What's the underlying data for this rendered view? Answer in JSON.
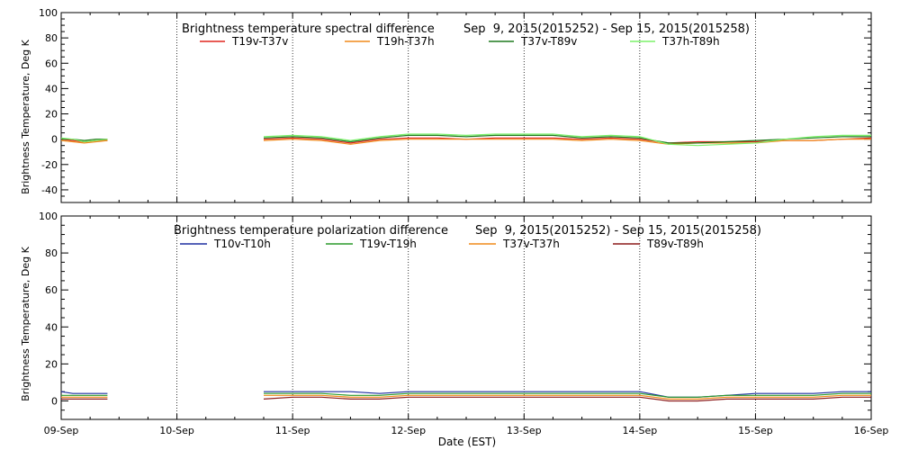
{
  "chart_data": [
    {
      "type": "line",
      "title_left": "Brightness temperature spectral difference",
      "title_right": "Sep  9, 2015(2015252) - Sep 15, 2015(2015258)",
      "ylabel": "Brightness Temperature, Deg K",
      "ylim": [
        -50,
        100
      ],
      "yticks": [
        "-40",
        "-20",
        "0",
        "20",
        "40",
        "60",
        "80",
        "100"
      ],
      "yticks_values": [
        -40,
        -20,
        0,
        20,
        40,
        60,
        80,
        100
      ],
      "xlim": [
        0,
        7
      ],
      "series": [
        {
          "name": "T19v-T37v",
          "color": "#e0261e",
          "x": [
            0,
            0.1,
            0.2,
            0.3,
            0.4,
            1.75,
            2.0,
            2.25,
            2.5,
            2.75,
            3.0,
            3.25,
            3.5,
            3.75,
            4.0,
            4.25,
            4.5,
            4.75,
            5.0,
            5.25,
            5.5,
            5.75,
            6.0,
            6.25,
            6.5,
            6.75,
            7.0
          ],
          "y": [
            0,
            -1,
            -2,
            -1,
            -1,
            0,
            1,
            0,
            -3,
            0,
            1,
            1,
            0,
            1,
            1,
            1,
            0,
            1,
            0,
            -3,
            -2,
            -2,
            -2,
            -1,
            -1,
            0,
            1
          ]
        },
        {
          "name": "T19h-T37h",
          "color": "#f08a1a",
          "x": [
            0,
            0.1,
            0.2,
            0.3,
            0.4,
            1.75,
            2.0,
            2.25,
            2.5,
            2.75,
            3.0,
            3.25,
            3.5,
            3.75,
            4.0,
            4.25,
            4.5,
            4.75,
            5.0,
            5.25,
            5.5,
            5.75,
            6.0,
            6.25,
            6.5,
            6.75,
            7.0
          ],
          "y": [
            -1,
            -2,
            -3,
            -2,
            -1,
            -1,
            0,
            -1,
            -4,
            -1,
            0,
            0,
            0,
            0,
            0,
            0,
            -1,
            0,
            -1,
            -4,
            -3,
            -3,
            -3,
            -1,
            -1,
            0,
            0
          ]
        },
        {
          "name": "T37v-T89v",
          "color": "#1f7a1f",
          "x": [
            0,
            0.1,
            0.2,
            0.3,
            0.4,
            1.75,
            2.0,
            2.25,
            2.5,
            2.75,
            3.0,
            3.25,
            3.5,
            3.75,
            4.0,
            4.25,
            4.5,
            4.75,
            5.0,
            5.25,
            5.5,
            5.75,
            6.0,
            6.25,
            6.5,
            6.75,
            7.0
          ],
          "y": [
            0,
            0,
            -1,
            0,
            0,
            1,
            2,
            1,
            -2,
            1,
            3,
            3,
            2,
            3,
            3,
            3,
            1,
            2,
            1,
            -3,
            -3,
            -2,
            -1,
            0,
            1,
            2,
            2
          ]
        },
        {
          "name": "T37h-T89h",
          "color": "#7cf26a",
          "x": [
            0,
            0.1,
            0.2,
            0.3,
            0.4,
            1.75,
            2.0,
            2.25,
            2.5,
            2.75,
            3.0,
            3.25,
            3.5,
            3.75,
            4.0,
            4.25,
            4.5,
            4.75,
            5.0,
            5.25,
            5.5,
            5.75,
            6.0,
            6.25,
            6.5,
            6.75,
            7.0
          ],
          "y": [
            1,
            0,
            -2,
            -1,
            0,
            2,
            3,
            2,
            -1,
            2,
            4,
            4,
            3,
            4,
            4,
            4,
            2,
            3,
            2,
            -4,
            -5,
            -4,
            -3,
            0,
            2,
            3,
            3
          ]
        }
      ]
    },
    {
      "type": "line",
      "title_left": "Brightness temperature polarization difference",
      "title_right": "Sep  9, 2015(2015252) - Sep 15, 2015(2015258)",
      "ylabel": "Brightness Temperature, Deg K",
      "xlabel": "Date (EST)",
      "ylim": [
        -10,
        100
      ],
      "yticks": [
        "0",
        "20",
        "40",
        "60",
        "80",
        "100"
      ],
      "yticks_values": [
        0,
        20,
        40,
        60,
        80,
        100
      ],
      "xlim": [
        0,
        7
      ],
      "xticks": [
        "09-Sep",
        "10-Sep",
        "11-Sep",
        "12-Sep",
        "13-Sep",
        "14-Sep",
        "15-Sep",
        "16-Sep"
      ],
      "xticks_values": [
        0,
        1,
        2,
        3,
        4,
        5,
        6,
        7
      ],
      "series": [
        {
          "name": "T10v-T10h",
          "color": "#1f2ea0",
          "x": [
            0,
            0.1,
            0.2,
            0.3,
            0.4,
            1.75,
            2.0,
            2.25,
            2.5,
            2.75,
            3.0,
            3.25,
            3.5,
            3.75,
            4.0,
            4.25,
            4.5,
            4.75,
            5.0,
            5.25,
            5.5,
            5.75,
            6.0,
            6.25,
            6.5,
            6.75,
            7.0
          ],
          "y": [
            5,
            4,
            4,
            4,
            4,
            5,
            5,
            5,
            5,
            4,
            5,
            5,
            5,
            5,
            5,
            5,
            5,
            5,
            5,
            2,
            2,
            3,
            4,
            4,
            4,
            5,
            5
          ]
        },
        {
          "name": "T19v-T19h",
          "color": "#2a9a2a",
          "x": [
            0,
            0.1,
            0.2,
            0.3,
            0.4,
            1.75,
            2.0,
            2.25,
            2.5,
            2.75,
            3.0,
            3.25,
            3.5,
            3.75,
            4.0,
            4.25,
            4.5,
            4.75,
            5.0,
            5.25,
            5.5,
            5.75,
            6.0,
            6.25,
            6.5,
            6.75,
            7.0
          ],
          "y": [
            3,
            3,
            3,
            3,
            3,
            4,
            4,
            4,
            3,
            3,
            4,
            4,
            4,
            4,
            4,
            4,
            4,
            4,
            4,
            2,
            2,
            3,
            3,
            3,
            3,
            4,
            4
          ]
        },
        {
          "name": "T37v-T37h",
          "color": "#f08a1a",
          "x": [
            0,
            0.1,
            0.2,
            0.3,
            0.4,
            1.75,
            2.0,
            2.25,
            2.5,
            2.75,
            3.0,
            3.25,
            3.5,
            3.75,
            4.0,
            4.25,
            4.5,
            4.75,
            5.0,
            5.25,
            5.5,
            5.75,
            6.0,
            6.25,
            6.5,
            6.75,
            7.0
          ],
          "y": [
            2,
            2,
            2,
            2,
            2,
            3,
            3,
            3,
            2,
            2,
            3,
            3,
            3,
            3,
            3,
            3,
            3,
            3,
            3,
            1,
            1,
            2,
            2,
            2,
            2,
            3,
            3
          ]
        },
        {
          "name": "T89v-T89h",
          "color": "#8b1a1a",
          "x": [
            0,
            0.1,
            0.2,
            0.3,
            0.4,
            1.75,
            2.0,
            2.25,
            2.5,
            2.75,
            3.0,
            3.25,
            3.5,
            3.75,
            4.0,
            4.25,
            4.5,
            4.75,
            5.0,
            5.25,
            5.5,
            5.75,
            6.0,
            6.25,
            6.5,
            6.75,
            7.0
          ],
          "y": [
            1,
            1,
            1,
            1,
            1,
            1,
            2,
            2,
            1,
            1,
            2,
            2,
            2,
            2,
            2,
            2,
            2,
            2,
            2,
            0,
            0,
            1,
            1,
            1,
            1,
            2,
            2
          ]
        }
      ]
    }
  ]
}
